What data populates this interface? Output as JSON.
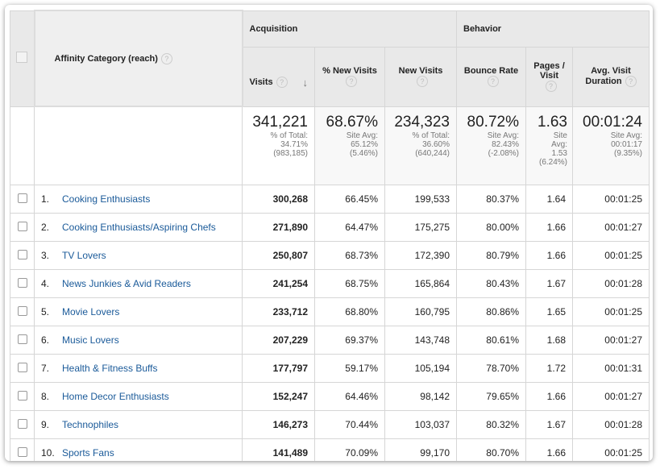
{
  "headers": {
    "category": "Affinity Category (reach)",
    "acquisition": "Acquisition",
    "behavior": "Behavior",
    "visits": "Visits",
    "pct_new": "% New Visits",
    "new_visits": "New Visits",
    "bounce": "Bounce Rate",
    "pages_visit": "Pages / Visit",
    "duration_1": "Avg. Visit",
    "duration_2": "Duration",
    "help": "?",
    "sort": "↓"
  },
  "totals": {
    "visits": {
      "value": "341,221",
      "l1": "% of Total:",
      "l2": "34.71%",
      "l3": "(983,185)"
    },
    "pct_new": {
      "value": "68.67%",
      "l1": "Site Avg:",
      "l2": "65.12%",
      "l3": "(5.46%)"
    },
    "new_visits": {
      "value": "234,323",
      "l1": "% of Total:",
      "l2": "36.60%",
      "l3": "(640,244)"
    },
    "bounce": {
      "value": "80.72%",
      "l1": "Site Avg:",
      "l2": "82.43%",
      "l3": "(-2.08%)"
    },
    "pages": {
      "value": "1.63",
      "l1": "Site",
      "l2": "Avg:",
      "l3": "1.53",
      "l4": "(6.24%)"
    },
    "duration": {
      "value": "00:01:24",
      "l1": "Site Avg:",
      "l2": "00:01:17",
      "l3": "(9.35%)"
    }
  },
  "rows": [
    {
      "n": "1.",
      "name": "Cooking Enthusiasts",
      "visits": "300,268",
      "pct_new": "66.45%",
      "new": "199,533",
      "bounce": "80.37%",
      "pages": "1.64",
      "dur": "00:01:25"
    },
    {
      "n": "2.",
      "name": "Cooking Enthusiasts/Aspiring Chefs",
      "visits": "271,890",
      "pct_new": "64.47%",
      "new": "175,275",
      "bounce": "80.00%",
      "pages": "1.66",
      "dur": "00:01:27"
    },
    {
      "n": "3.",
      "name": "TV Lovers",
      "visits": "250,807",
      "pct_new": "68.73%",
      "new": "172,390",
      "bounce": "80.79%",
      "pages": "1.66",
      "dur": "00:01:25"
    },
    {
      "n": "4.",
      "name": "News Junkies & Avid Readers",
      "visits": "241,254",
      "pct_new": "68.75%",
      "new": "165,864",
      "bounce": "80.43%",
      "pages": "1.67",
      "dur": "00:01:28"
    },
    {
      "n": "5.",
      "name": "Movie Lovers",
      "visits": "233,712",
      "pct_new": "68.80%",
      "new": "160,795",
      "bounce": "80.86%",
      "pages": "1.65",
      "dur": "00:01:25"
    },
    {
      "n": "6.",
      "name": "Music Lovers",
      "visits": "207,229",
      "pct_new": "69.37%",
      "new": "143,748",
      "bounce": "80.61%",
      "pages": "1.68",
      "dur": "00:01:27"
    },
    {
      "n": "7.",
      "name": "Health & Fitness Buffs",
      "visits": "177,797",
      "pct_new": "59.17%",
      "new": "105,194",
      "bounce": "78.70%",
      "pages": "1.72",
      "dur": "00:01:31"
    },
    {
      "n": "8.",
      "name": "Home Decor Enthusiasts",
      "visits": "152,247",
      "pct_new": "64.46%",
      "new": "98,142",
      "bounce": "79.65%",
      "pages": "1.66",
      "dur": "00:01:27"
    },
    {
      "n": "9.",
      "name": "Technophiles",
      "visits": "146,273",
      "pct_new": "70.44%",
      "new": "103,037",
      "bounce": "80.32%",
      "pages": "1.67",
      "dur": "00:01:28"
    },
    {
      "n": "10.",
      "name": "Sports Fans",
      "visits": "141,489",
      "pct_new": "70.09%",
      "new": "99,170",
      "bounce": "80.70%",
      "pages": "1.66",
      "dur": "00:01:25"
    }
  ]
}
